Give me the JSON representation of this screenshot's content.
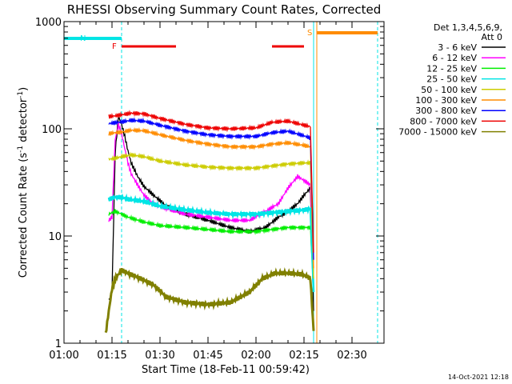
{
  "chart_data": {
    "type": "line",
    "title": "RHESSI Observing Summary Count Rates, Corrected",
    "xlabel": "Start Time (18-Feb-11 00:59:42)",
    "ylabel": "Corrected Count Rate (s⁻¹ detector⁻¹)",
    "ylabel_parts": {
      "main": "Corrected Count Rate (s",
      "sup1": "-1",
      "mid": " detector",
      "sup2": "-1",
      "end": ")"
    },
    "yscale": "log",
    "xlim": [
      "01:00",
      "02:40"
    ],
    "ylim": [
      1,
      1000
    ],
    "x_ticks": [
      "01:00",
      "01:15",
      "01:30",
      "01:45",
      "02:00",
      "02:15",
      "02:30"
    ],
    "y_ticks": [
      "1",
      "10",
      "100",
      "1000"
    ],
    "legend": {
      "header": [
        "Det 1,3,4,5,6,9,",
        "Att 0"
      ],
      "placement": "right"
    },
    "series": [
      {
        "name": "3 - 6 keV",
        "color": "#000000",
        "x": [
          "01:14",
          "01:15",
          "01:16",
          "01:17",
          "01:18",
          "01:19",
          "01:20",
          "01:21",
          "01:23",
          "01:25",
          "01:28",
          "01:32",
          "01:38",
          "01:45",
          "01:52",
          "01:58",
          "02:03",
          "02:07",
          "02:10",
          "02:13",
          "02:15",
          "02:17",
          "02:18"
        ],
        "y": [
          2.5,
          3,
          60,
          130,
          110,
          85,
          62,
          48,
          36,
          29,
          24,
          19,
          16,
          14,
          12,
          11,
          12,
          15,
          17,
          20,
          24,
          28,
          2
        ]
      },
      {
        "name": "6 - 12 keV",
        "color": "#ff00ff",
        "x": [
          "01:14",
          "01:15",
          "01:16",
          "01:17",
          "01:18",
          "01:19",
          "01:20",
          "01:21",
          "01:23",
          "01:25",
          "01:28",
          "01:32",
          "01:38",
          "01:45",
          "01:52",
          "01:58",
          "02:03",
          "02:07",
          "02:10",
          "02:13",
          "02:15",
          "02:17",
          "02:18"
        ],
        "y": [
          14,
          15,
          80,
          110,
          90,
          65,
          48,
          38,
          30,
          24,
          20,
          18,
          16,
          15,
          14,
          14,
          17,
          20,
          28,
          36,
          33,
          30,
          3
        ]
      },
      {
        "name": "12 - 25 keV",
        "color": "#00ee00",
        "x": [
          "01:14",
          "01:16",
          "01:18",
          "01:20",
          "01:25",
          "01:30",
          "01:38",
          "01:45",
          "01:52",
          "02:00",
          "02:05",
          "02:10",
          "02:15",
          "02:17",
          "02:18"
        ],
        "y": [
          16,
          17,
          16,
          15,
          13.5,
          12.5,
          12,
          11.5,
          11,
          11,
          11.5,
          12,
          12,
          12,
          3
        ]
      },
      {
        "name": "25 - 50 keV",
        "color": "#00e5e5",
        "x": [
          "01:14",
          "01:16",
          "01:18",
          "01:20",
          "01:25",
          "01:30",
          "01:38",
          "01:45",
          "01:52",
          "02:00",
          "02:05",
          "02:10",
          "02:15",
          "02:17",
          "02:18"
        ],
        "y": [
          22,
          23,
          23,
          22,
          21,
          19,
          17.5,
          16.5,
          16,
          16,
          16.5,
          17,
          17.5,
          18,
          3
        ]
      },
      {
        "name": "50 - 100 keV",
        "color": "#cccc00",
        "x": [
          "01:14",
          "01:16",
          "01:18",
          "01:21",
          "01:25",
          "01:30",
          "01:38",
          "01:45",
          "01:52",
          "02:00",
          "02:05",
          "02:10",
          "02:15",
          "02:17",
          "02:18"
        ],
        "y": [
          52,
          53,
          55,
          57,
          55,
          50,
          46,
          44,
          43,
          43,
          45,
          47,
          48,
          48,
          4
        ]
      },
      {
        "name": "100 - 300 keV",
        "color": "#ff8c00",
        "x": [
          "01:14",
          "01:16",
          "01:18",
          "01:21",
          "01:25",
          "01:30",
          "01:38",
          "01:45",
          "01:52",
          "02:00",
          "02:05",
          "02:10",
          "02:15",
          "02:17",
          "02:18"
        ],
        "y": [
          90,
          92,
          93,
          97,
          96,
          88,
          78,
          72,
          68,
          68,
          72,
          74,
          70,
          68,
          5
        ]
      },
      {
        "name": "300 - 800 keV",
        "color": "#0000ff",
        "x": [
          "01:14",
          "01:16",
          "01:18",
          "01:21",
          "01:25",
          "01:30",
          "01:38",
          "01:45",
          "01:52",
          "02:00",
          "02:05",
          "02:10",
          "02:15",
          "02:17",
          "02:18"
        ],
        "y": [
          112,
          114,
          116,
          120,
          118,
          108,
          95,
          88,
          85,
          85,
          92,
          95,
          86,
          82,
          6
        ]
      },
      {
        "name": "800 - 7000 keV",
        "color": "#ee0000",
        "x": [
          "01:14",
          "01:16",
          "01:18",
          "01:21",
          "01:25",
          "01:30",
          "01:38",
          "01:45",
          "01:52",
          "02:00",
          "02:05",
          "02:10",
          "02:15",
          "02:17",
          "02:18"
        ],
        "y": [
          130,
          132,
          135,
          140,
          138,
          125,
          110,
          102,
          100,
          102,
          115,
          118,
          108,
          105,
          7
        ]
      },
      {
        "name": "7000 - 15000 keV",
        "color": "#808000",
        "x": [
          "01:13",
          "01:14",
          "01:15",
          "01:16",
          "01:18",
          "01:20",
          "01:24",
          "01:28",
          "01:32",
          "01:38",
          "01:45",
          "01:52",
          "01:58",
          "02:02",
          "02:06",
          "02:10",
          "02:14",
          "02:16",
          "02:17",
          "02:18"
        ],
        "y": [
          1.2,
          2,
          3.2,
          4,
          4.8,
          4.5,
          4,
          3.5,
          2.7,
          2.4,
          2.3,
          2.4,
          3.0,
          4.0,
          4.5,
          4.5,
          4.4,
          4.2,
          4,
          1.3
        ]
      }
    ],
    "flags": [
      {
        "label": "F",
        "color": "#ee0000",
        "x": [
          [
            "01:18",
            "01:35"
          ],
          [
            "02:05",
            "02:15"
          ]
        ]
      },
      {
        "label": "N",
        "color": "#00e5e5",
        "x": [
          [
            "00:59",
            "01:18"
          ]
        ]
      },
      {
        "label": "S",
        "color": "#ff8c00",
        "x": [
          [
            "02:19",
            "02:38"
          ]
        ]
      }
    ],
    "vertical_markers": [
      {
        "x": "01:18",
        "color": "#00e5e5",
        "style": "dashed"
      },
      {
        "x": "02:18",
        "color": "#00e5e5",
        "style": "solid"
      },
      {
        "x": "02:38",
        "color": "#00e5e5",
        "style": "dashed"
      },
      {
        "x": "02:19",
        "color": "#ff8c00",
        "style": "solid"
      }
    ],
    "grid": false
  },
  "footer": {
    "timestamp": "14-Oct-2021 12:18"
  },
  "colors": {
    "background": "#ffffff",
    "axes": "#000000"
  }
}
